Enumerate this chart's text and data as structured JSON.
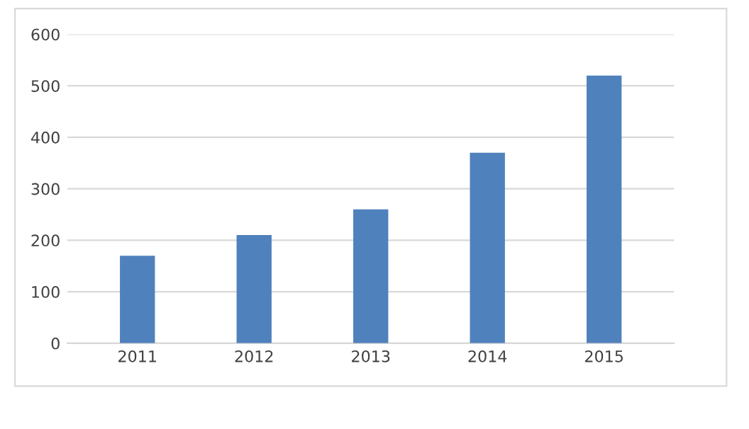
{
  "chart_data": {
    "type": "bar",
    "categories": [
      "2011",
      "2012",
      "2013",
      "2014",
      "2015"
    ],
    "values": [
      170,
      210,
      260,
      370,
      520
    ],
    "color": "#4f81bd",
    "ylim": [
      0,
      600
    ],
    "yticks": [
      0,
      100,
      200,
      300,
      400,
      500,
      600
    ],
    "grid": "y"
  }
}
